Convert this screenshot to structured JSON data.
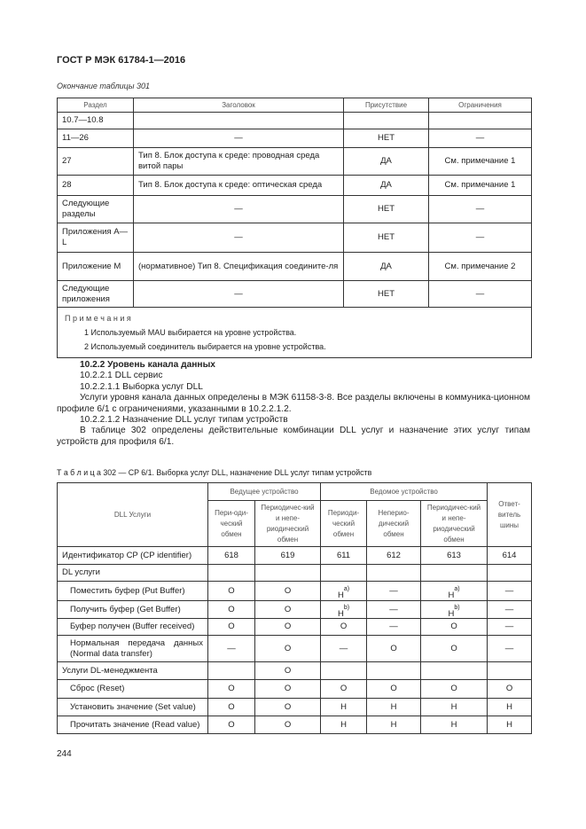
{
  "header": "ГОСТ Р МЭК 61784-1—2016",
  "table301": {
    "caption": "Окончание таблицы 301",
    "columns": [
      "Раздел",
      "Заголовок",
      "Присутствие",
      "Ограничения"
    ],
    "rows": [
      [
        "10.7—10.8",
        "",
        "",
        ""
      ],
      [
        "11—26",
        "—",
        "НЕТ",
        "—"
      ],
      [
        "27",
        "Тип 8. Блок доступа к среде: проводная среда витой пары",
        "ДА",
        "См. примечание 1"
      ],
      [
        "28",
        "Тип 8. Блок доступа к среде: оптическая среда",
        "ДА",
        "См. примечание 1"
      ],
      [
        "Следующие разделы",
        "—",
        "НЕТ",
        "—"
      ],
      [
        "Приложения А—L",
        "—",
        "НЕТ",
        "—"
      ],
      [
        "Приложение М",
        "(нормативное) Тип 8. Спецификация соедините-ля",
        "ДА",
        "См. примечание 2"
      ],
      [
        "Следующие приложения",
        "—",
        "НЕТ",
        "—"
      ]
    ],
    "notes_title": "П р и м е ч а н и я",
    "notes": [
      "1 Используемый MAU выбирается на уровне устройства.",
      "2 Используемый соединитель выбирается на уровне устройства."
    ]
  },
  "text": [
    {
      "t": "10.2.2 Уровень канала данных",
      "bold": true
    },
    {
      "t": "10.2.2.1  DLL сервис"
    },
    {
      "t": "10.2.2.1.1  Выборка услуг DLL"
    },
    {
      "t": "Услуги уровня канала данных определены в МЭК 61158-3-8. Все разделы включены в коммуника-ционном профиле 6/1 с ограничениями, указанными в 10.2.2.1.2."
    },
    {
      "t": "10.2.2.1.2  Назначение DLL услуг типам устройств"
    },
    {
      "t": "В таблице 302 определены действительные комбинации DLL услуг и назначение этих услуг типам устройств для профиля 6/1."
    }
  ],
  "table302": {
    "caption": "Т а б л и ц а  302 — CP 6/1. Выборка услуг DLL, назначение DLL услуг типам устройств",
    "h_services": "DLL Услуги",
    "h_master": "Ведущее устройство",
    "h_slave": "Ведомое устройство",
    "h_coupler": "Ответ-витель шины",
    "sub": [
      "Пери-оди-ческий обмен",
      "Периодичес-кий и непе-риодический обмен",
      "Периоди-ческий обмен",
      "Неперио-дический обмен",
      "Периодичес-кий и непе-риодический обмен"
    ],
    "rows": [
      {
        "name": "Идентификатор CP (CP identifier)",
        "indent": false,
        "v": [
          "618",
          "619",
          "611",
          "612",
          "613",
          "614"
        ]
      },
      {
        "name": "DL услуги",
        "indent": false,
        "v": [
          "",
          "",
          "",
          "",
          "",
          ""
        ]
      },
      {
        "name": "Поместить буфер (Put Buffer)",
        "indent": true,
        "v": [
          "О",
          "О",
          "Н|a)",
          "—",
          "Н|a)",
          "—"
        ]
      },
      {
        "name": "Получить буфер (Get Buffer)",
        "indent": true,
        "v": [
          "О",
          "О",
          "Н|b)",
          "—",
          "Н|b)",
          "—"
        ]
      },
      {
        "name": "Буфер получен (Buffer received)",
        "indent": true,
        "v": [
          "О",
          "О",
          "О",
          "—",
          "О",
          "—"
        ]
      },
      {
        "name": "Нормальная передача данных (Normal data transfer)",
        "indent": true,
        "v": [
          "—",
          "О",
          "—",
          "О",
          "О",
          "—"
        ]
      },
      {
        "name": "Услуги DL-менеджмента",
        "indent": false,
        "v": [
          "",
          "О",
          "",
          "",
          "",
          ""
        ]
      },
      {
        "name": "Сброс (Reset)",
        "indent": true,
        "v": [
          "О",
          "О",
          "О",
          "О",
          "О",
          "О"
        ]
      },
      {
        "name": "Установить значение (Set value)",
        "indent": true,
        "v": [
          "О",
          "О",
          "Н",
          "Н",
          "Н",
          "Н"
        ]
      },
      {
        "name": "Прочитать значение (Read value)",
        "indent": true,
        "v": [
          "О",
          "О",
          "Н",
          "Н",
          "Н",
          "Н"
        ]
      }
    ]
  },
  "page_number": "244"
}
